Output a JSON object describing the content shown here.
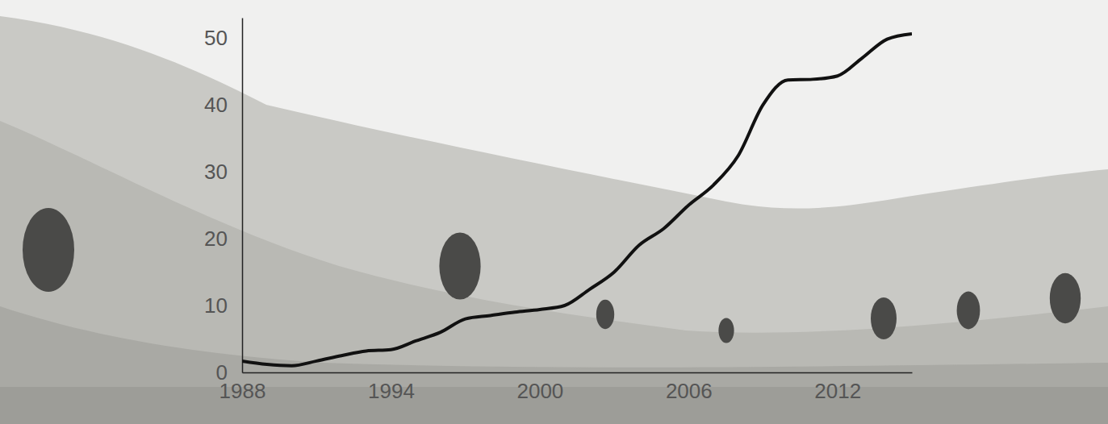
{
  "chart_data": {
    "type": "line",
    "x": [
      1988,
      1989,
      1990,
      1991,
      1992,
      1993,
      1994,
      1995,
      1996,
      1997,
      1998,
      1999,
      2000,
      2001,
      2002,
      2003,
      2004,
      2005,
      2006,
      2007,
      2008,
      2009,
      2010,
      2011,
      2012,
      2013,
      2014,
      2015
    ],
    "values": [
      1.7,
      1.2,
      1.0,
      1.7,
      2.5,
      3.2,
      3.4,
      4.7,
      6.0,
      8.0,
      8.5,
      9.0,
      9.4,
      10.0,
      12.4,
      15.0,
      19.0,
      21.5,
      25.0,
      28.0,
      32.4,
      40.0,
      43.7,
      43.8,
      44.3,
      47.0,
      49.8,
      50.6
    ],
    "color": "#111111",
    "xlim": [
      1988,
      2015
    ],
    "xticks": [
      1988,
      1994,
      2000,
      2006,
      2012
    ],
    "ylim": [
      0,
      53
    ],
    "yticks": [
      0,
      10,
      20,
      30,
      40,
      50
    ],
    "grid": false
  }
}
